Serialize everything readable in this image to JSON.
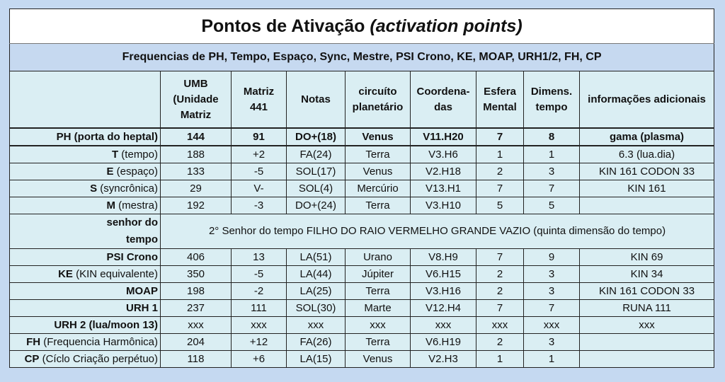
{
  "title": {
    "main": "Pontos de Ativação",
    "italic": "(activation points)"
  },
  "subtitle": "Frequencias de PH, Tempo, Espaço, Sync, Mestre, PSI Crono, KE, MOAP, URH1/2, FH, CP",
  "headers": [
    "",
    "UMB (Unidade Matriz",
    "Matriz 441",
    "Notas",
    "circuíto planetário",
    "Coordena-das",
    "Esfera Mental",
    "Dimens. tempo",
    "informações adicionais"
  ],
  "rows": [
    {
      "bold": "PH (porta do heptal)",
      "rest": "",
      "cells": [
        "144",
        "91",
        "DO+(18)",
        "Venus",
        "V11.H20",
        "7",
        "8",
        "gama  (plasma)"
      ]
    },
    {
      "bold": "T",
      "rest": " (tempo)",
      "cells": [
        "188",
        "+2",
        "FA(24)",
        "Terra",
        "V3.H6",
        "1",
        "1",
        "6.3  (lua.dia)"
      ]
    },
    {
      "bold": "E",
      "rest": " (espaço)",
      "cells": [
        "133",
        "-5",
        "SOL(17)",
        "Venus",
        "V2.H18",
        "2",
        "3",
        "KIN 161  CODON 33"
      ]
    },
    {
      "bold": "S",
      "rest": " (syncrônica)",
      "cells": [
        "29",
        "V-",
        "SOL(4)",
        "Mercúrio",
        "V13.H1",
        "7",
        "7",
        "KIN 161"
      ]
    },
    {
      "bold": "M",
      "rest": " (mestra)",
      "cells": [
        "192",
        "-3",
        "DO+(24)",
        "Terra",
        "V3.H10",
        "5",
        "5",
        ""
      ]
    },
    {
      "bold": "senhor do tempo",
      "rest": "",
      "span": "2° Senhor do tempo FILHO DO RAIO VERMELHO GRANDE VAZIO (quinta dimensão do tempo)"
    },
    {
      "bold": "PSI Crono",
      "rest": "",
      "cells": [
        "406",
        "13",
        "LA(51)",
        "Urano",
        "V8.H9",
        "7",
        "9",
        "KIN 69"
      ]
    },
    {
      "bold": "KE",
      "rest": " (KIN equivalente)",
      "cells": [
        "350",
        "-5",
        "LA(44)",
        "Júpiter",
        "V6.H15",
        "2",
        "3",
        "KIN 34"
      ]
    },
    {
      "bold": "MOAP",
      "rest": "",
      "cells": [
        "198",
        "-2",
        "LA(25)",
        "Terra",
        "V3.H16",
        "2",
        "3",
        "KIN 161  CODON 33"
      ]
    },
    {
      "bold": "URH 1",
      "rest": "",
      "cells": [
        "237",
        "111",
        "SOL(30)",
        "Marte",
        "V12.H4",
        "7",
        "7",
        "RUNA 111"
      ]
    },
    {
      "bold": "URH 2 (lua/moon 13)",
      "rest": "",
      "cells": [
        "xxx",
        "xxx",
        "xxx",
        "xxx",
        "xxx",
        "xxx",
        "xxx",
        "xxx"
      ]
    },
    {
      "bold": "FH",
      "rest": " (Frequencia Harmônica)",
      "cells": [
        "204",
        "+12",
        "FA(26)",
        "Terra",
        "V6.H19",
        "2",
        "3",
        ""
      ]
    },
    {
      "bold": "CP",
      "rest": " (Cíclo Criação perpétuo)",
      "cells": [
        "118",
        "+6",
        "LA(15)",
        "Venus",
        "V2.H3",
        "1",
        "1",
        ""
      ]
    }
  ]
}
